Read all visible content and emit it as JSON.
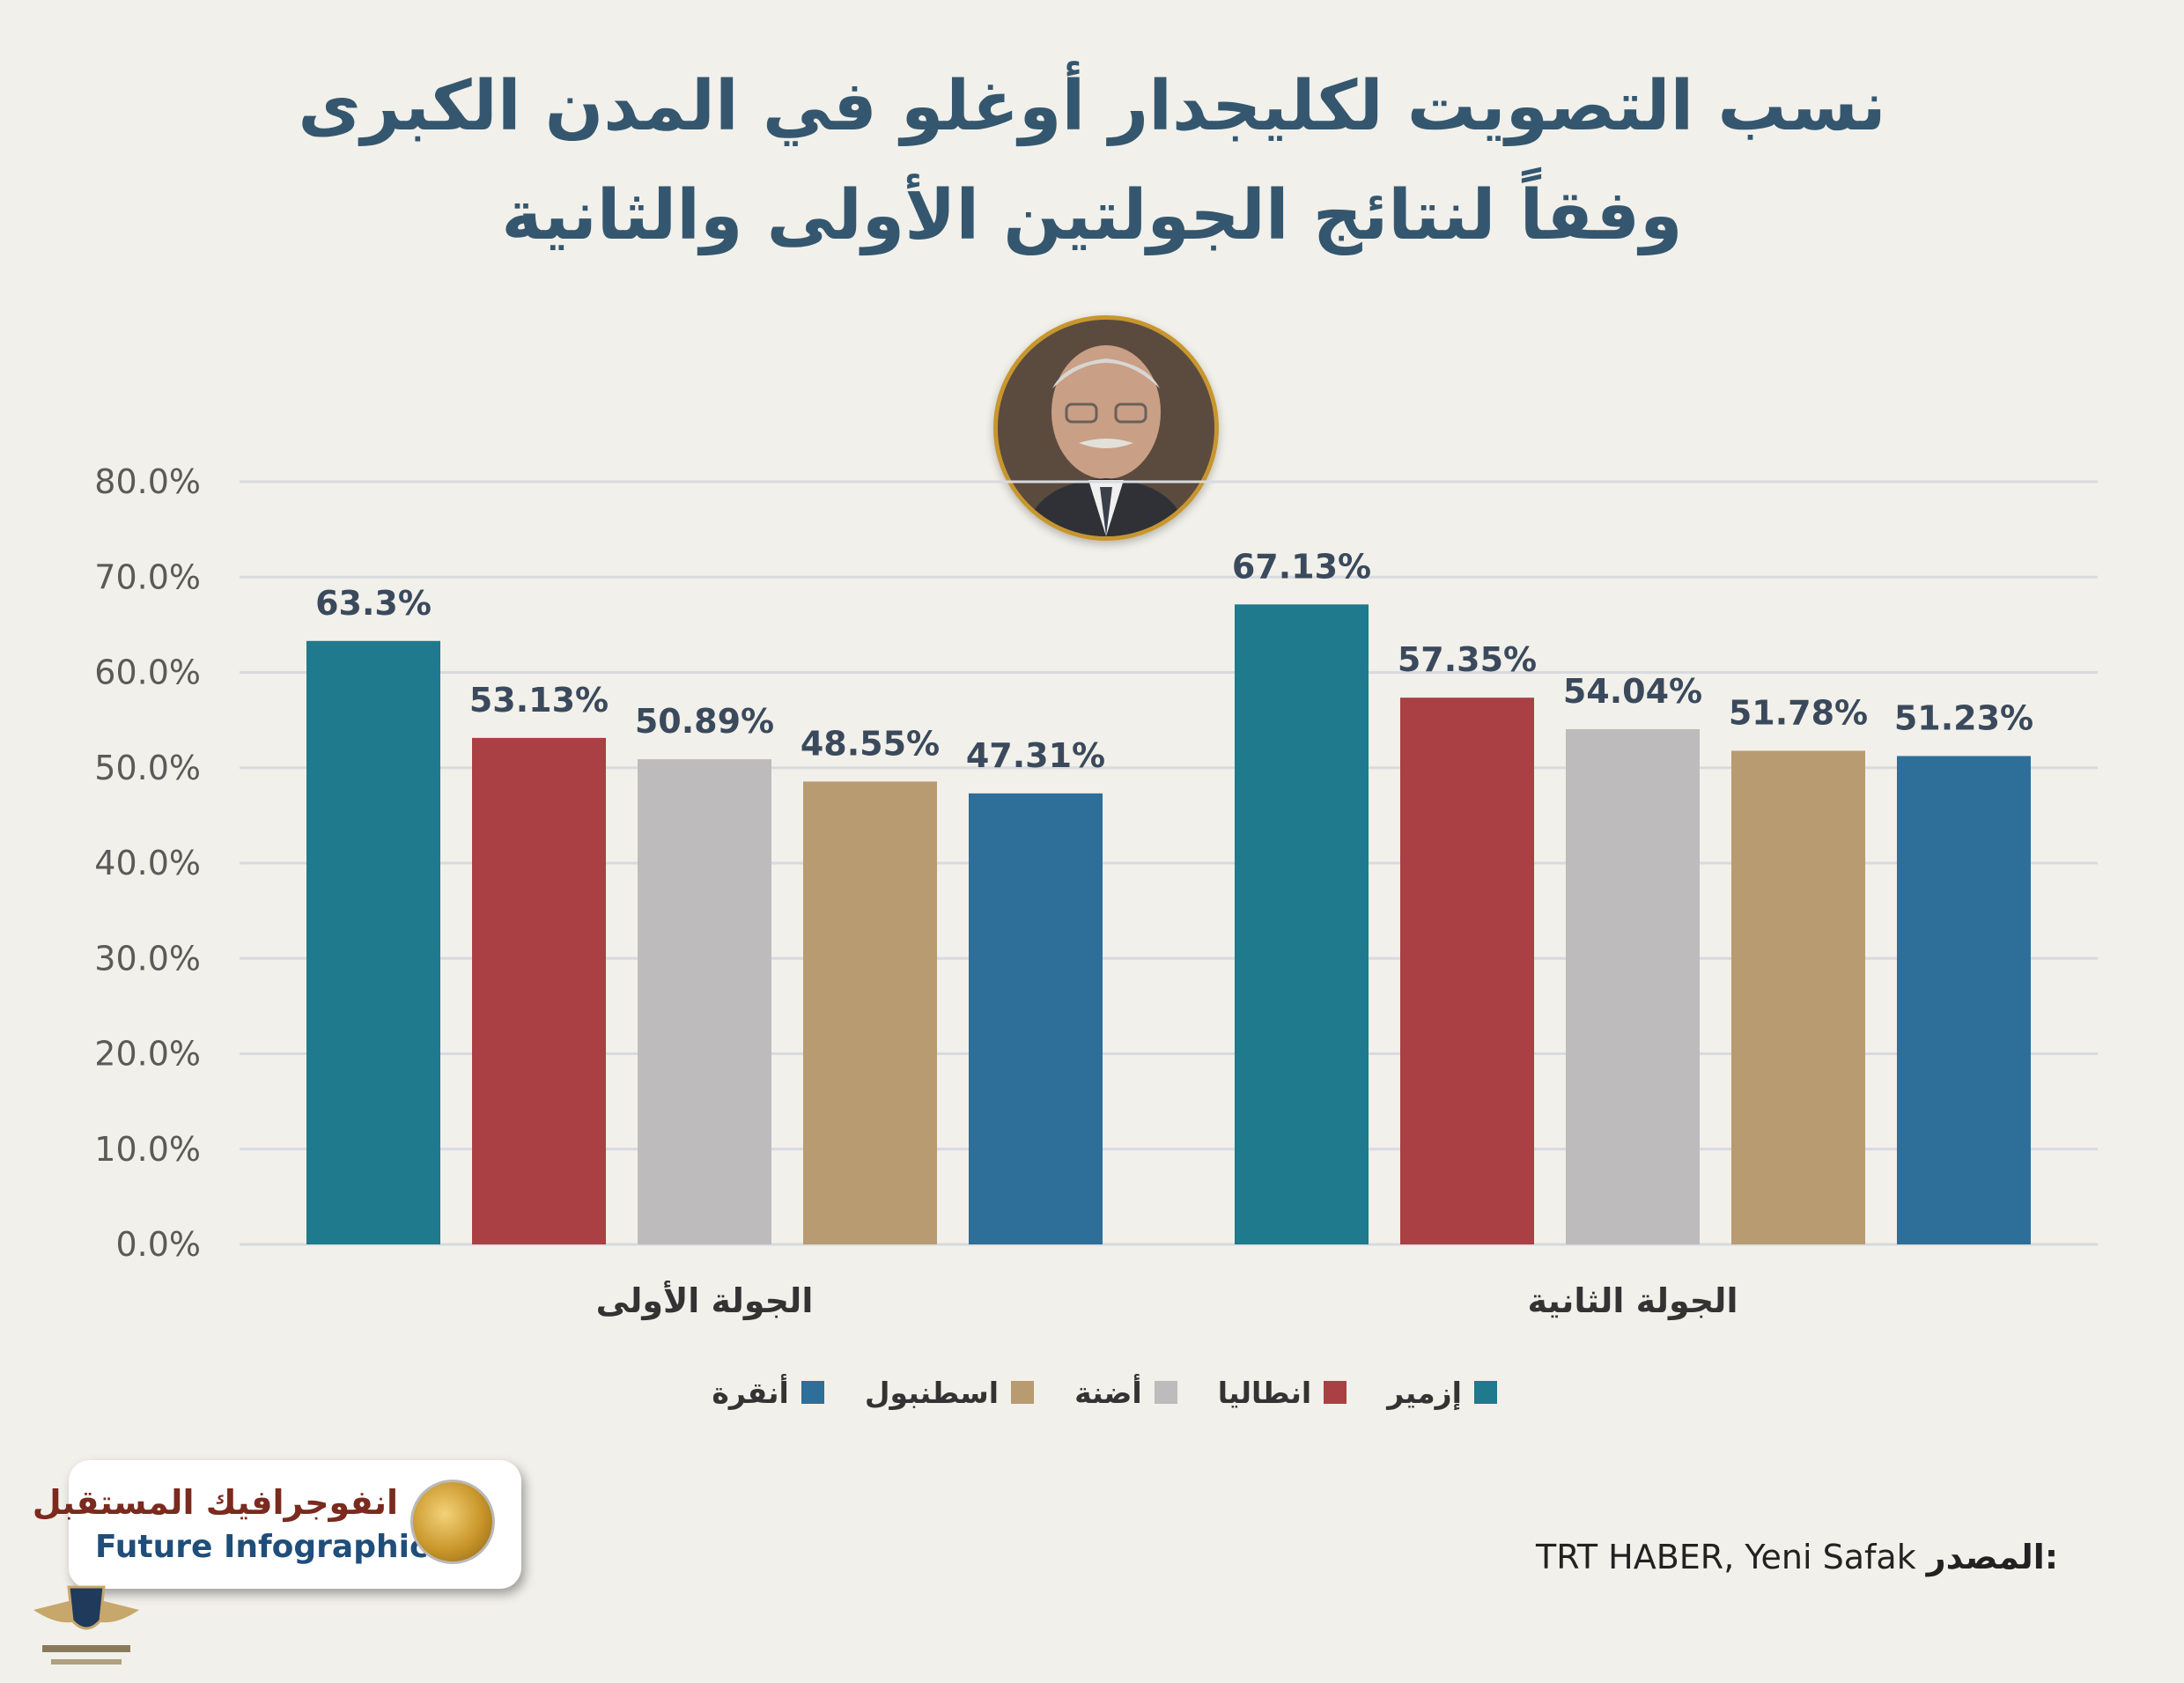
{
  "title_line1": "نسب التصويت لكليجدار أوغلو في المدن الكبرى",
  "title_line2": "وفقاً لنتائج الجولتين الأولى والثانية",
  "chart_data": {
    "type": "bar",
    "categories": [
      "الجولة الأولى",
      "الجولة الثانية"
    ],
    "series": [
      {
        "name": "إزمير",
        "color": "#1e7a8c",
        "values": [
          63.3,
          67.13
        ],
        "labels": [
          "63.3%",
          "67.13%"
        ]
      },
      {
        "name": "انطاليا",
        "color": "#aa4043",
        "values": [
          53.13,
          57.35
        ],
        "labels": [
          "53.13%",
          "57.35%"
        ]
      },
      {
        "name": "أضنة",
        "color": "#bdbbbb",
        "values": [
          50.89,
          54.04
        ],
        "labels": [
          "50.89%",
          "54.04%"
        ]
      },
      {
        "name": "اسطنبول",
        "color": "#b89b71",
        "values": [
          48.55,
          51.78
        ],
        "labels": [
          "48.55%",
          "51.78%"
        ]
      },
      {
        "name": "أنقرة",
        "color": "#2e6f99",
        "values": [
          47.31,
          51.23
        ],
        "labels": [
          "47.31%",
          "51.23%"
        ]
      }
    ],
    "y_ticks": [
      "0.0%",
      "10.0%",
      "20.0%",
      "30.0%",
      "40.0%",
      "50.0%",
      "60.0%",
      "70.0%",
      "80.0%"
    ],
    "ylim": [
      0,
      80
    ],
    "grid": true,
    "legend_position": "bottom"
  },
  "logo": {
    "arabic": "انفوجرافيك المستقبل",
    "english": "Future Infographic"
  },
  "source": {
    "label": "المصدر:",
    "text": "TRT HABER, Yeni Safak"
  }
}
